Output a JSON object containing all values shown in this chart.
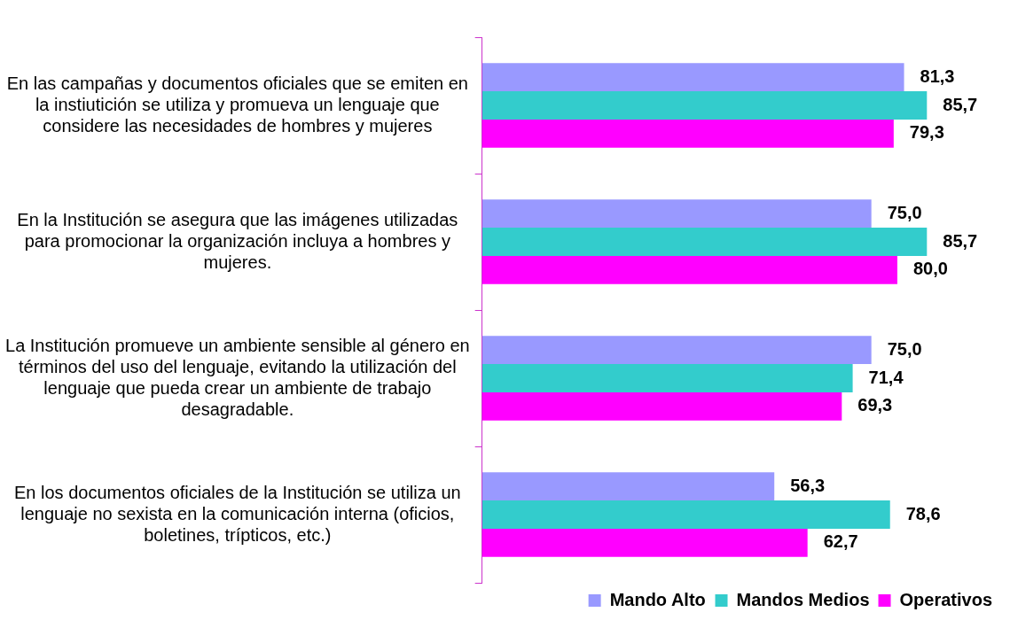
{
  "chart_data": {
    "type": "bar",
    "orientation": "horizontal",
    "categories": [
      "En las campañas y documentos oficiales que se emiten en la instiutición se utiliza y promueva un lenguaje que considere las necesidades de hombres y mujeres",
      "En la Institución se asegura que las imágenes utilizadas para promocionar la organización incluya a hombres y mujeres.",
      "La Institución promueve un ambiente sensible al género en términos del uso del lenguaje, evitando la utilización del lenguaje que pueda crear un ambiente de trabajo desagradable.",
      "En los documentos oficiales de la Institución se utiliza un lenguaje no sexista en la comunicación interna (oficios, boletines, trípticos, etc.)"
    ],
    "series": [
      {
        "name": "Mando Alto",
        "color": "#9999ff",
        "values": [
          81.3,
          75.0,
          75.0,
          56.3
        ],
        "value_labels": [
          "81,3",
          "75,0",
          "75,0",
          "56,3"
        ]
      },
      {
        "name": "Mandos Medios",
        "color": "#33cccc",
        "values": [
          85.7,
          85.7,
          71.4,
          78.6
        ],
        "value_labels": [
          "85,7",
          "85,7",
          "71,4",
          "78,6"
        ]
      },
      {
        "name": "Operativos",
        "color": "#ff00ff",
        "values": [
          79.3,
          80.0,
          69.3,
          62.7
        ],
        "value_labels": [
          "79,3",
          "80,0",
          "69,3",
          "62,7"
        ]
      }
    ],
    "legend": "bottom right",
    "grid": false
  }
}
